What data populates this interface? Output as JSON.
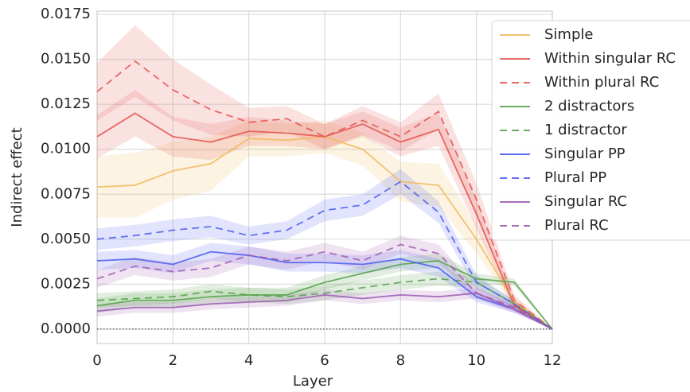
{
  "chart_data": {
    "type": "line",
    "x_label": "Layer",
    "y_label": "Indirect effect",
    "x": [
      0,
      1,
      2,
      3,
      4,
      5,
      6,
      7,
      8,
      9,
      10,
      11,
      12
    ],
    "xlim": [
      0,
      12
    ],
    "xticks": [
      0,
      2,
      4,
      6,
      8,
      10,
      12
    ],
    "ylim": [
      -0.0008,
      0.01768
    ],
    "yticks": [
      {
        "value": 0,
        "label": "0.0000"
      },
      {
        "value": 0.0025,
        "label": "0.0025"
      },
      {
        "value": 0.005,
        "label": "0.0050"
      },
      {
        "value": 0.0075,
        "label": "0.0075"
      },
      {
        "value": 0.01,
        "label": "0.0100"
      },
      {
        "value": 0.0125,
        "label": "0.0125"
      },
      {
        "value": 0.015,
        "label": "0.0150"
      },
      {
        "value": 0.0175,
        "label": "0.0175"
      }
    ],
    "grid": true,
    "legend": "upper right",
    "reference_line": 0,
    "series": [
      {
        "name": "Simple",
        "color": "#f0b85a",
        "dashed": false,
        "values": [
          0.0079,
          0.008,
          0.0088,
          0.0092,
          0.0106,
          0.0105,
          0.0107,
          0.01,
          0.0082,
          0.008,
          0.005,
          0.0015,
          0
        ],
        "error": [
          0.0017,
          0.0018,
          0.0016,
          0.0015,
          0.001,
          0.0009,
          0.0009,
          0.0009,
          0.0011,
          0.0012,
          0.0008,
          0.0003,
          0
        ]
      },
      {
        "name": "Within singular RC",
        "color": "#e4524f",
        "dashed": false,
        "values": [
          0.0107,
          0.012,
          0.0107,
          0.0104,
          0.011,
          0.0109,
          0.0107,
          0.0114,
          0.0104,
          0.0111,
          0.0064,
          0.0013,
          0
        ],
        "error": [
          0.0012,
          0.0013,
          0.0011,
          0.001,
          0.0008,
          0.0007,
          0.0007,
          0.0007,
          0.0008,
          0.0009,
          0.0008,
          0.0003,
          0
        ]
      },
      {
        "name": "Within plural RC",
        "color": "#e4524f",
        "dashed": true,
        "values": [
          0.0132,
          0.0149,
          0.0133,
          0.0122,
          0.0115,
          0.0117,
          0.0107,
          0.0116,
          0.0107,
          0.0121,
          0.0072,
          0.0016,
          0
        ],
        "error": [
          0.0016,
          0.002,
          0.0017,
          0.0014,
          0.0008,
          0.0007,
          0.0007,
          0.0008,
          0.0008,
          0.001,
          0.0009,
          0.0003,
          0
        ]
      },
      {
        "name": "2 distractors",
        "color": "#55a14a",
        "dashed": false,
        "values": [
          0.0013,
          0.0016,
          0.0016,
          0.0018,
          0.0019,
          0.0019,
          0.0026,
          0.0031,
          0.0036,
          0.0038,
          0.0028,
          0.0026,
          0
        ],
        "error": [
          0.0004,
          0.0004,
          0.0004,
          0.0004,
          0.0004,
          0.0004,
          0.0004,
          0.0004,
          0.0004,
          0.0004,
          0.0003,
          0.0002,
          0
        ]
      },
      {
        "name": "1 distractor",
        "color": "#55a14a",
        "dashed": true,
        "values": [
          0.0016,
          0.0017,
          0.0018,
          0.0021,
          0.0019,
          0.0018,
          0.002,
          0.0023,
          0.0026,
          0.0028,
          0.0026,
          0.0014,
          0
        ],
        "error": [
          0.0004,
          0.0004,
          0.0004,
          0.0004,
          0.0004,
          0.0004,
          0.0004,
          0.0004,
          0.0004,
          0.0004,
          0.0003,
          0.0002,
          0
        ]
      },
      {
        "name": "Singular PP",
        "color": "#4b5cf0",
        "dashed": false,
        "values": [
          0.0038,
          0.0039,
          0.0036,
          0.0043,
          0.0041,
          0.0037,
          0.0037,
          0.0036,
          0.0039,
          0.0034,
          0.0018,
          0.0011,
          0
        ],
        "error": [
          0.0005,
          0.0005,
          0.0005,
          0.0005,
          0.0005,
          0.0005,
          0.0005,
          0.0005,
          0.0005,
          0.0005,
          0.0003,
          0.0002,
          0
        ]
      },
      {
        "name": "Plural PP",
        "color": "#4b5cf0",
        "dashed": true,
        "values": [
          0.005,
          0.0052,
          0.0055,
          0.0057,
          0.0052,
          0.0055,
          0.0066,
          0.0069,
          0.0082,
          0.0065,
          0.0026,
          0.0014,
          0
        ],
        "error": [
          0.0006,
          0.0006,
          0.0006,
          0.0006,
          0.0005,
          0.0005,
          0.0006,
          0.0006,
          0.0007,
          0.0006,
          0.0004,
          0.0002,
          0
        ]
      },
      {
        "name": "Singular RC",
        "color": "#9e5ab3",
        "dashed": false,
        "values": [
          0.001,
          0.0012,
          0.0012,
          0.0014,
          0.0015,
          0.0016,
          0.0019,
          0.0017,
          0.0019,
          0.0018,
          0.002,
          0.0011,
          0
        ],
        "error": [
          0.0003,
          0.0003,
          0.0003,
          0.0003,
          0.0003,
          0.0003,
          0.0003,
          0.0003,
          0.0003,
          0.0003,
          0.0003,
          0.0002,
          0
        ]
      },
      {
        "name": "Plural RC",
        "color": "#9e5ab3",
        "dashed": true,
        "values": [
          0.0028,
          0.0035,
          0.0032,
          0.0034,
          0.0041,
          0.0038,
          0.0043,
          0.0038,
          0.0047,
          0.0042,
          0.002,
          0.0012,
          0
        ],
        "error": [
          0.0005,
          0.0005,
          0.0005,
          0.0005,
          0.0005,
          0.0005,
          0.0005,
          0.0005,
          0.0005,
          0.0005,
          0.0003,
          0.0002,
          0
        ]
      }
    ]
  }
}
